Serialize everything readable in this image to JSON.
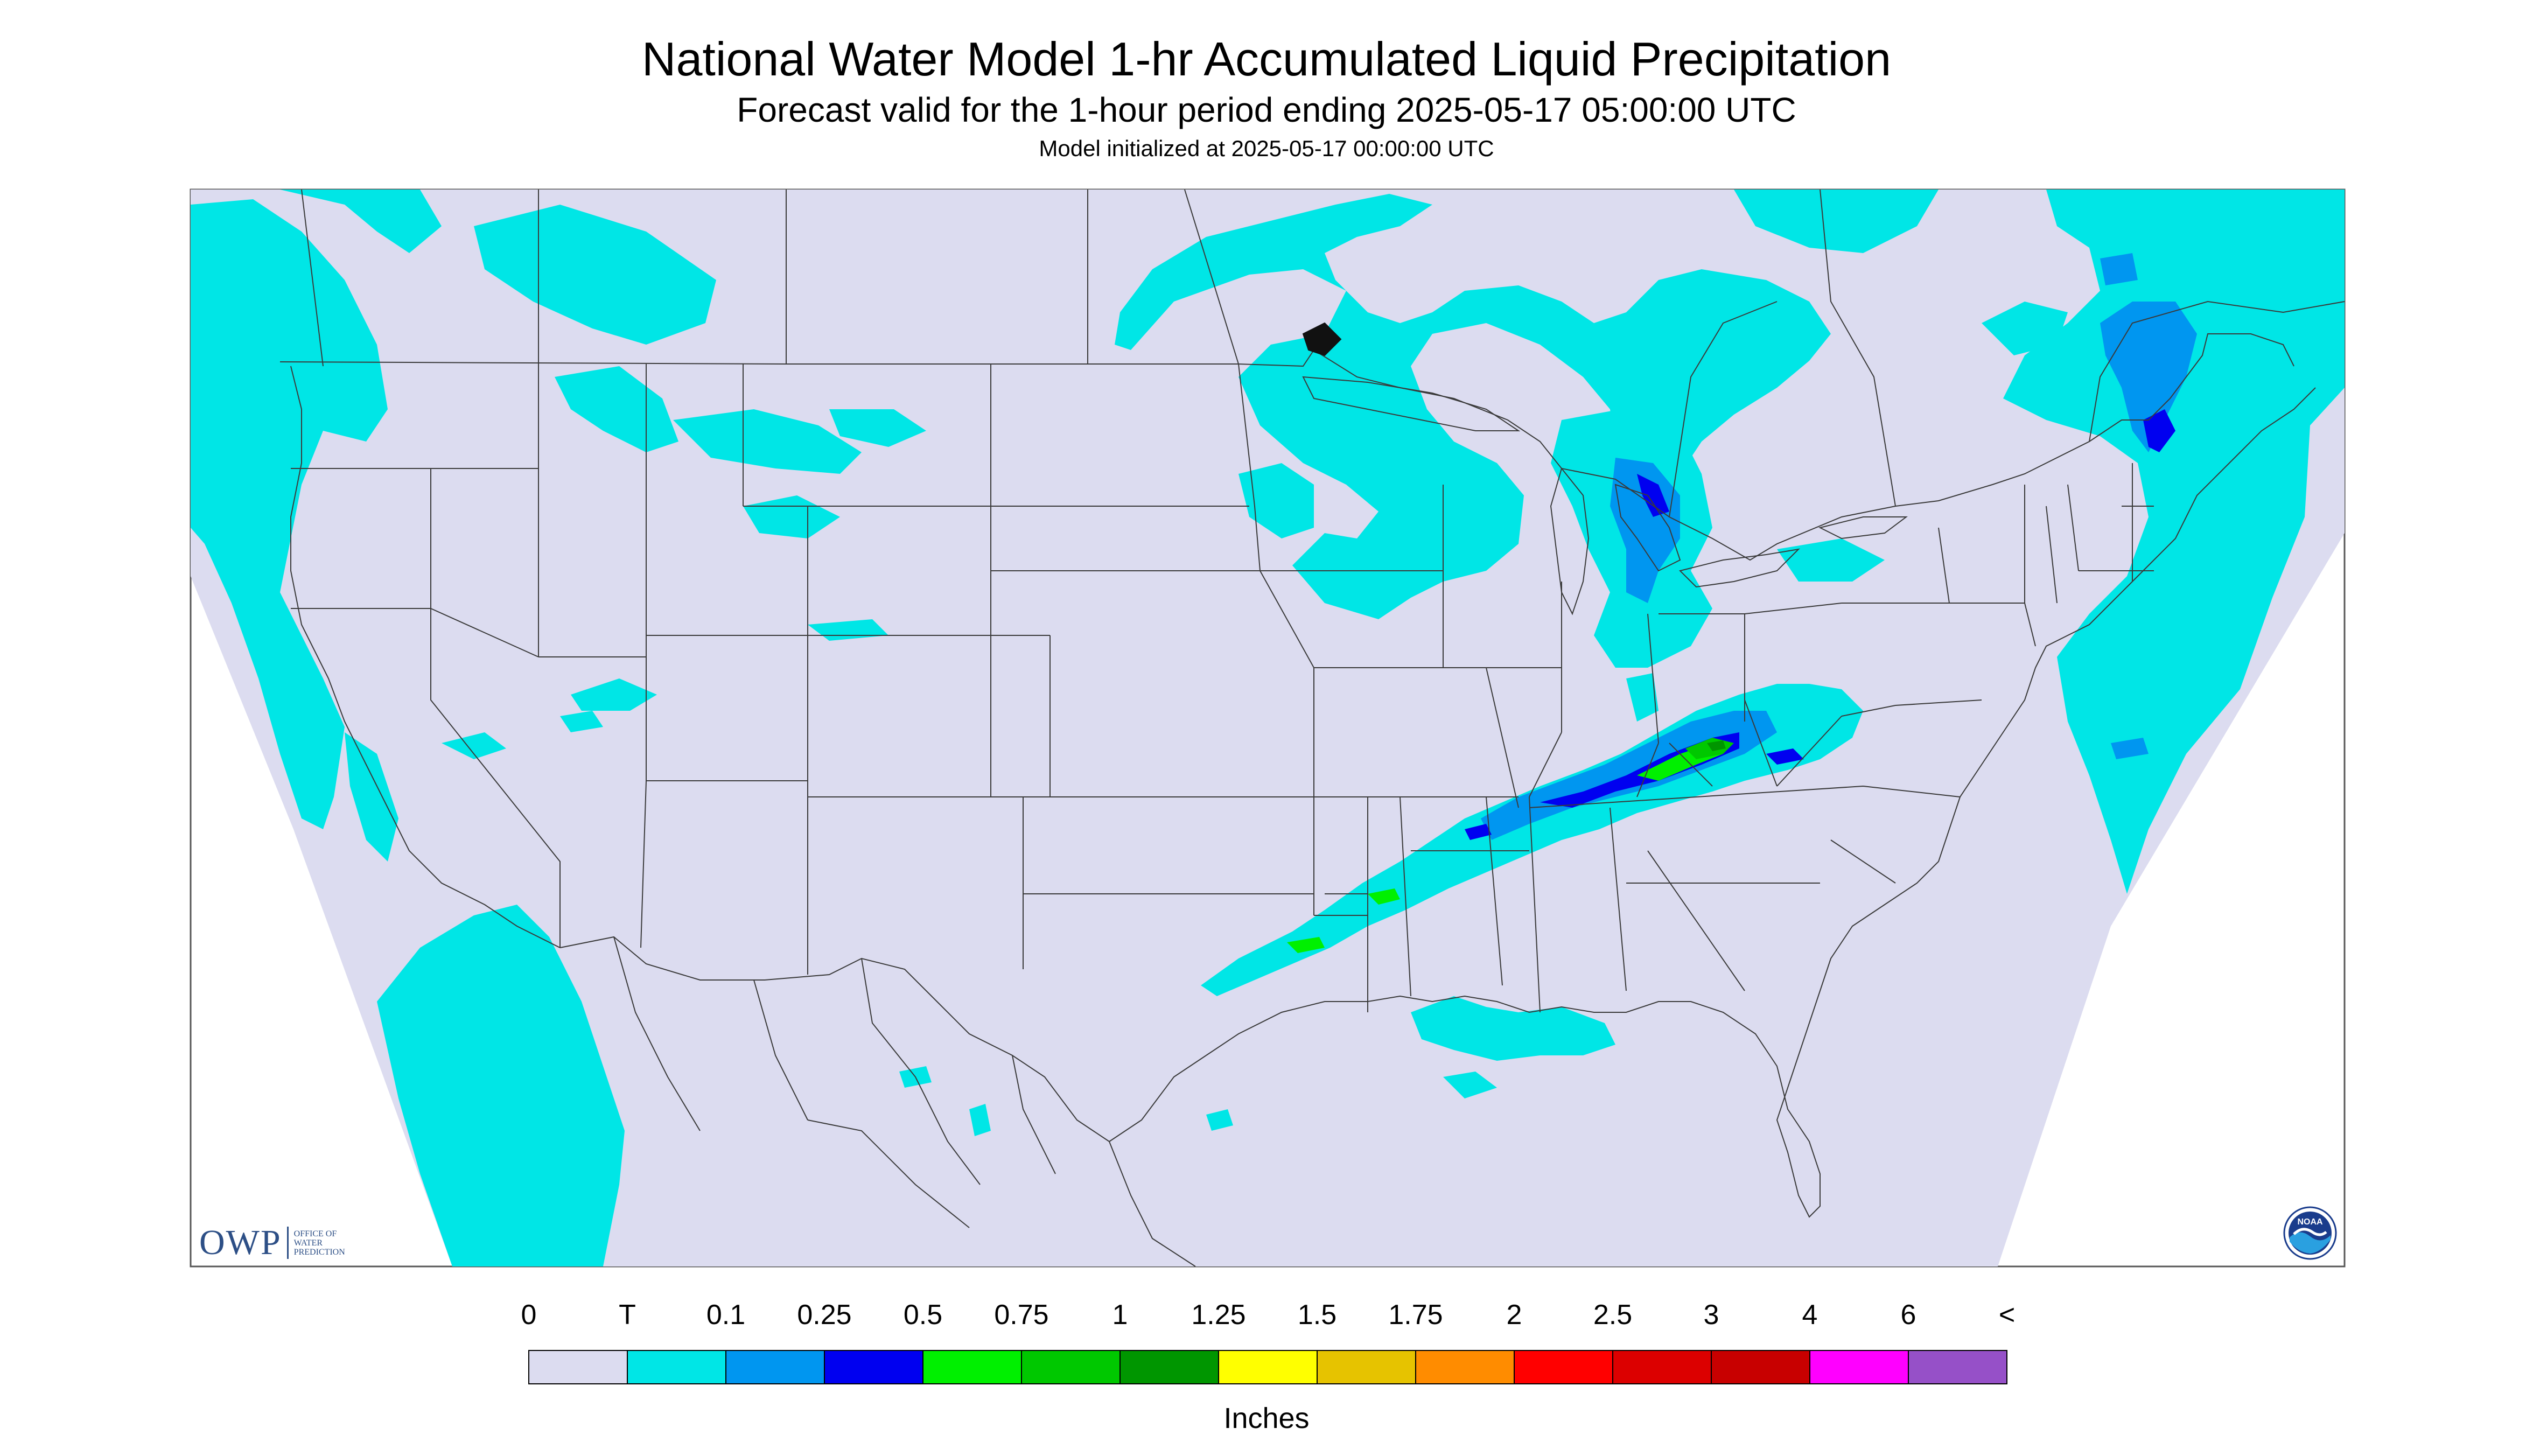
{
  "header": {
    "title": "National Water Model 1-hr Accumulated Liquid Precipitation",
    "subtitle": "Forecast valid for the 1-hour period ending 2025-05-17 05:00:00 UTC",
    "init": "Model initialized at 2025-05-17 00:00:00 UTC"
  },
  "colorbar": {
    "labels": [
      "0",
      "T",
      "0.1",
      "0.25",
      "0.5",
      "0.75",
      "1",
      "1.25",
      "1.5",
      "1.75",
      "2",
      "2.5",
      "3",
      "4",
      "6",
      "<"
    ],
    "colors": [
      "#dcdcf0",
      "#00e6e6",
      "#0096f0",
      "#0000f0",
      "#00f000",
      "#00c800",
      "#009600",
      "#ffff00",
      "#e6c300",
      "#ff8c00",
      "#ff0000",
      "#dc0000",
      "#c80000",
      "#ff00ff",
      "#9650c8"
    ],
    "units": "Inches"
  },
  "map": {
    "background_color": "#dcdcf0",
    "outside_color": "#ffffff",
    "line_color": "#3a3a3a"
  },
  "logos": {
    "owp_mark": "OWP",
    "owp_text": [
      "OFFICE OF",
      "WATER",
      "PREDICTION"
    ],
    "noaa_text": "NOAA",
    "noaa_icon": "noaa-logo-icon"
  }
}
